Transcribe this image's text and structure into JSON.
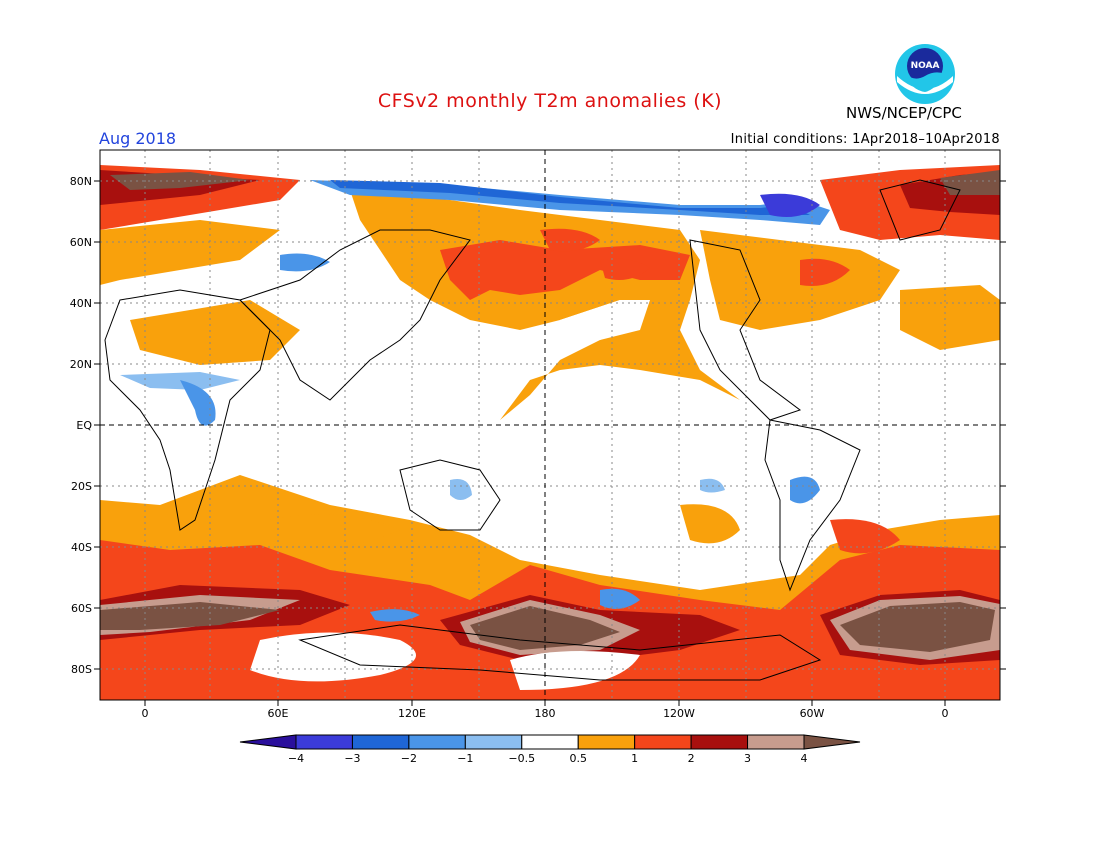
{
  "header": {
    "title": "CFSv2 monthly T2m anomalies (K)",
    "month": "Aug 2018",
    "initial_conditions": "Initial conditions: 1Apr2018–10Apr2018",
    "org": "NWS/NCEP/CPC",
    "logo_text": "NOAA"
  },
  "axes": {
    "lat_labels": [
      "80N",
      "60N",
      "40N",
      "20N",
      "EQ",
      "20S",
      "40S",
      "60S",
      "80S"
    ],
    "lon_labels": [
      "0",
      "60E",
      "120E",
      "180",
      "120W",
      "60W",
      "0"
    ]
  },
  "legend": {
    "labels": [
      "−4",
      "−3",
      "−2",
      "−1",
      "−0.5",
      "0.5",
      "1",
      "2",
      "3",
      "4"
    ],
    "colors": [
      "#2a0f9c",
      "#3b3bd9",
      "#1f66d6",
      "#4a95e8",
      "#8bbef0",
      "#ffffff",
      "#f9a10c",
      "#f4461b",
      "#a8100e",
      "#c79c8e",
      "#7a5243"
    ]
  },
  "colors": {
    "warm1": "#f9a10c",
    "warm2": "#f4461b",
    "warm3": "#a8100e",
    "warm4": "#c79c8e",
    "warm5": "#7a5243",
    "cool1": "#8bbef0",
    "cool2": "#4a95e8",
    "cool3": "#1f66d6",
    "cool4": "#3b3bd9",
    "title": "#dd1111",
    "month": "#2244dd"
  }
}
